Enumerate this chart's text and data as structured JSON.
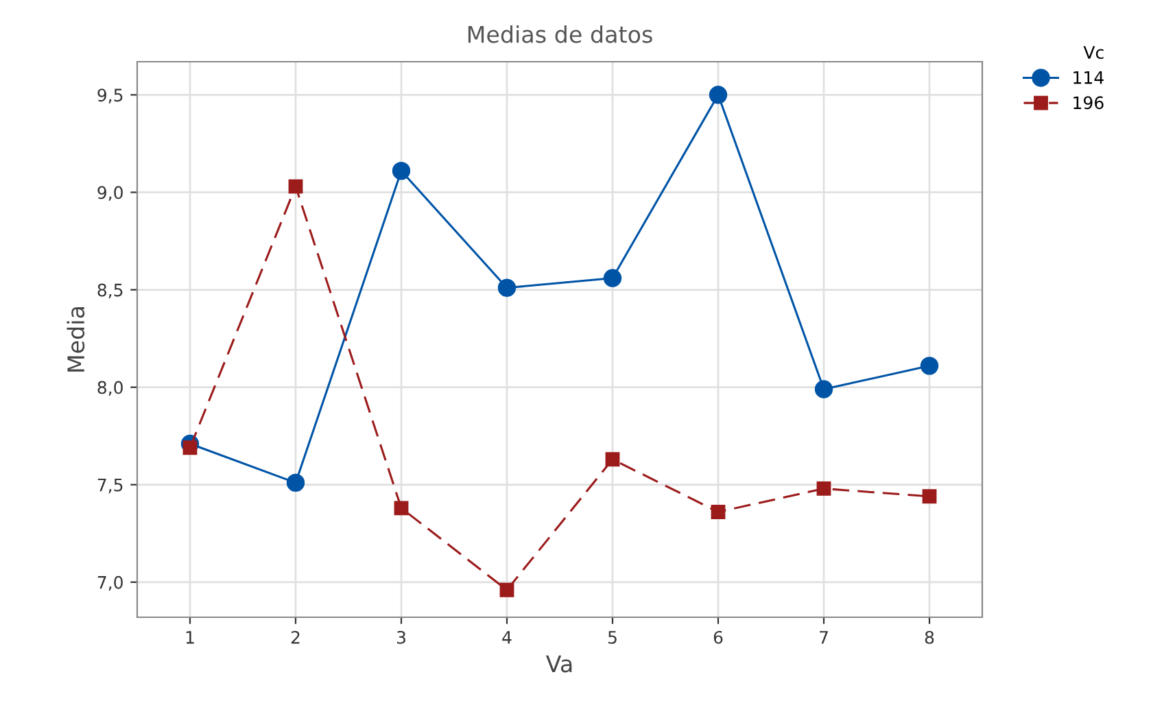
{
  "chart_data": {
    "type": "line",
    "title": "Medias de datos",
    "xlabel": "Va",
    "ylabel": "Media",
    "legend_title": "Vc",
    "x": [
      1,
      2,
      3,
      4,
      5,
      6,
      7,
      8
    ],
    "series": [
      {
        "name": "114",
        "color": "#0054a6",
        "marker": "circle",
        "line_style": "solid",
        "values": [
          7.71,
          7.51,
          9.11,
          8.51,
          8.56,
          9.5,
          7.99,
          8.11
        ]
      },
      {
        "name": "196",
        "color": "#9c1b1b",
        "marker": "square",
        "line_style": "dashed",
        "values": [
          7.69,
          9.03,
          7.38,
          6.96,
          7.63,
          7.36,
          7.48,
          7.44
        ]
      }
    ],
    "xlim": [
      0.5,
      8.5
    ],
    "xticks": [
      1,
      2,
      3,
      4,
      5,
      6,
      7,
      8
    ],
    "ylim": [
      6.82,
      9.67
    ],
    "yticks": [
      {
        "value": 7.0,
        "label": "7,0"
      },
      {
        "value": 7.5,
        "label": "7,5"
      },
      {
        "value": 8.0,
        "label": "8,0"
      },
      {
        "value": 8.5,
        "label": "8,5"
      },
      {
        "value": 9.0,
        "label": "9,0"
      },
      {
        "value": 9.5,
        "label": "9,5"
      }
    ],
    "grid": true,
    "legend": "top right"
  }
}
